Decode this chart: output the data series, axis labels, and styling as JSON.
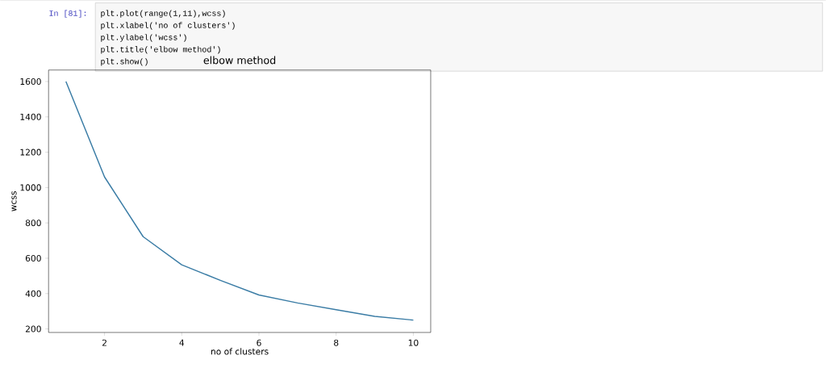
{
  "chart_data": {
    "type": "line",
    "title": "elbow method",
    "xlabel": "no of clusters",
    "ylabel": "wcss",
    "x": [
      1,
      2,
      3,
      4,
      5,
      6,
      7,
      8,
      9,
      10
    ],
    "values": [
      1600,
      1060,
      722,
      563,
      475,
      392,
      347,
      309,
      271,
      250
    ],
    "color": "#3a7ca5",
    "xlim": [
      0.55,
      10.45
    ],
    "ylim": [
      180,
      1665
    ],
    "xticks": [
      2,
      4,
      6,
      8,
      10
    ],
    "yticks": [
      200,
      400,
      600,
      800,
      1000,
      1200,
      1400,
      1600
    ],
    "annotations": [
      "In [81]:",
      "plt.plot(range(1,11),wcss)",
      "plt.xlabel('no of clusters')",
      "plt.ylabel('wcss')",
      "plt.title('elbow method')",
      "plt.show()"
    ]
  }
}
